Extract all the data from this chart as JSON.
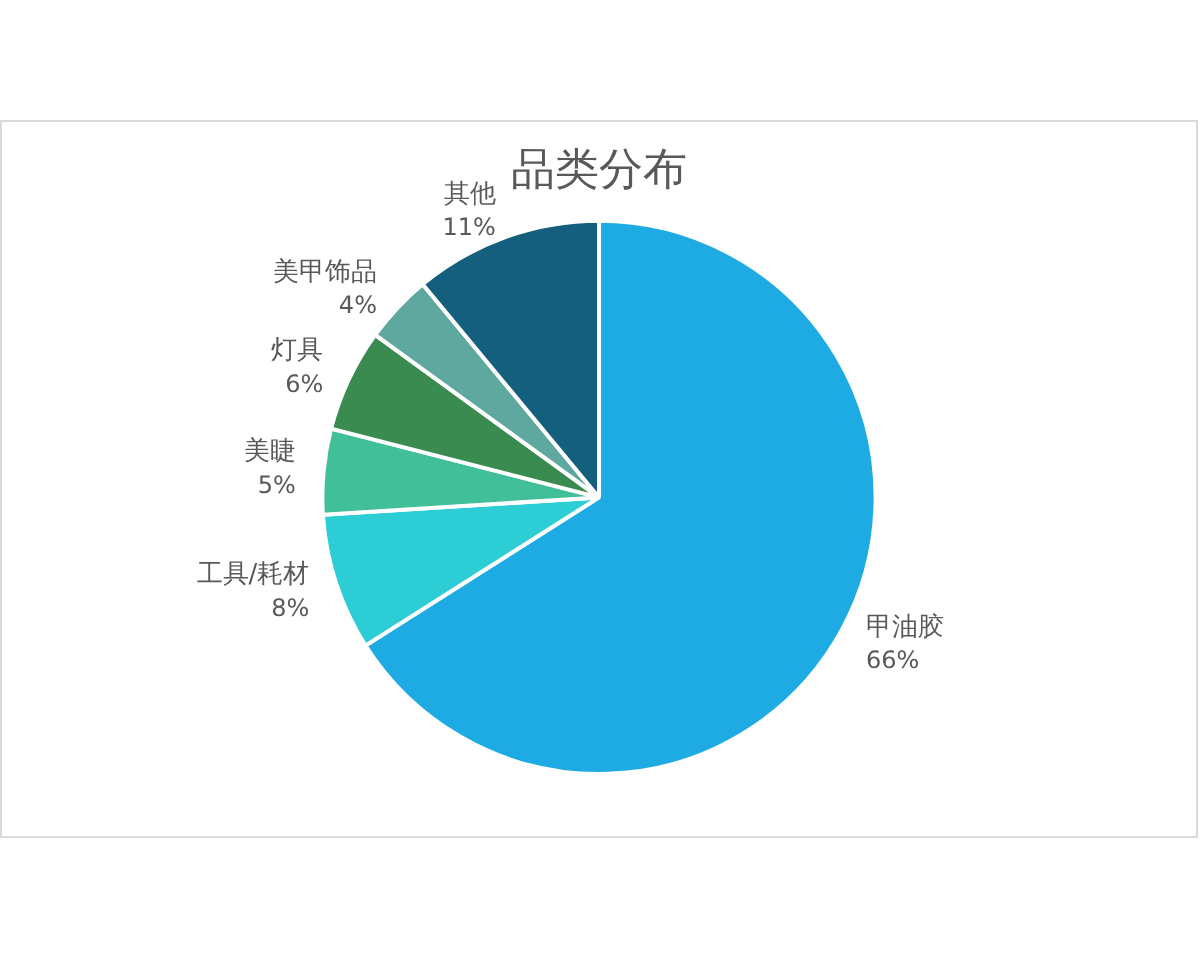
{
  "chart_data": {
    "type": "pie",
    "title": "品类分布",
    "categories": [
      "甲油胶",
      "工具/耗材",
      "美睫",
      "灯具",
      "美甲饰品",
      "其他"
    ],
    "values": [
      66,
      8,
      5,
      6,
      4,
      11
    ],
    "value_labels": [
      "66%",
      "8%",
      "5%",
      "6%",
      "4%",
      "11%"
    ],
    "colors": [
      "#1eaae2",
      "#2ccdd5",
      "#41bf98",
      "#3a8b4f",
      "#5ea8a0",
      "#155f7e"
    ],
    "legend": false
  }
}
